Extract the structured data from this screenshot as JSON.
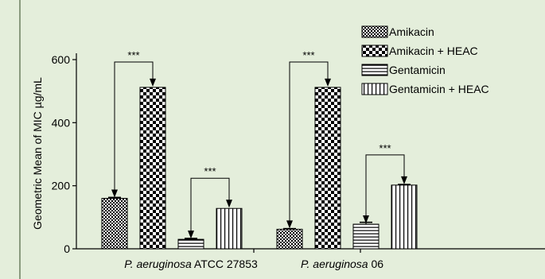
{
  "colors": {
    "panel_background": "#e4eedb",
    "panel_border": "#8a9a7e",
    "ink": "#000000",
    "bar_fill": "#ffffff"
  },
  "chart_data": {
    "type": "bar",
    "title": "",
    "xlabel": "",
    "ylabel": "Geometric Mean of MIC µg/mL",
    "ylim": [
      0,
      600
    ],
    "yticks": [
      0,
      200,
      400,
      600
    ],
    "grid": false,
    "legend_position": "top-right",
    "categories": [
      {
        "italic": "P. aeruginosa",
        "rest": " ATCC 27853"
      },
      {
        "italic": "P. aeruginosa",
        "rest": " 06"
      }
    ],
    "series": [
      {
        "name": "Amikacin",
        "pattern": "small-checker",
        "values": [
          160,
          62
        ],
        "errors": [
          3,
          2
        ]
      },
      {
        "name": "Amikacin + HEAC",
        "pattern": "large-checker",
        "values": [
          512,
          512
        ],
        "errors": [
          0,
          0
        ]
      },
      {
        "name": "Gentamicin",
        "pattern": "horizontal-lines",
        "values": [
          30,
          78
        ],
        "errors": [
          3,
          6
        ]
      },
      {
        "name": "Gentamicin + HEAC",
        "pattern": "vertical-lines",
        "values": [
          128,
          202
        ],
        "errors": [
          0,
          2
        ]
      }
    ],
    "significance": [
      {
        "category": 0,
        "from_series": 1,
        "to_series": 0,
        "label": "***"
      },
      {
        "category": 0,
        "from_series": 3,
        "to_series": 2,
        "label": "***"
      },
      {
        "category": 1,
        "from_series": 1,
        "to_series": 0,
        "label": "***"
      },
      {
        "category": 1,
        "from_series": 3,
        "to_series": 2,
        "label": "***"
      }
    ]
  }
}
